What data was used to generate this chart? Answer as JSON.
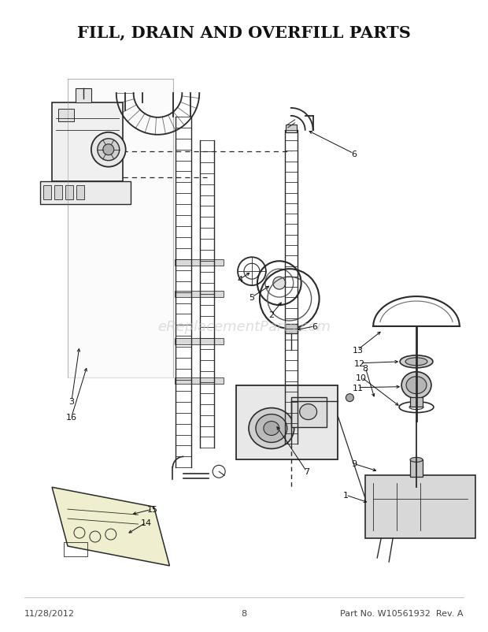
{
  "title": "FILL, DRAIN AND OVERFILL PARTS",
  "title_fontsize": 15,
  "title_fontweight": "bold",
  "background_color": "#ffffff",
  "footer_left": "11/28/2012",
  "footer_center": "8",
  "footer_right": "Part No. W10561932  Rev. A",
  "footer_fontsize": 8,
  "watermark": "eReplacementParts.com",
  "watermark_color": "#c8c8c8",
  "watermark_fontsize": 13,
  "fig_width": 6.2,
  "fig_height": 8.03,
  "dpi": 100,
  "line_color": "#2a2a2a",
  "label_fontsize": 8
}
